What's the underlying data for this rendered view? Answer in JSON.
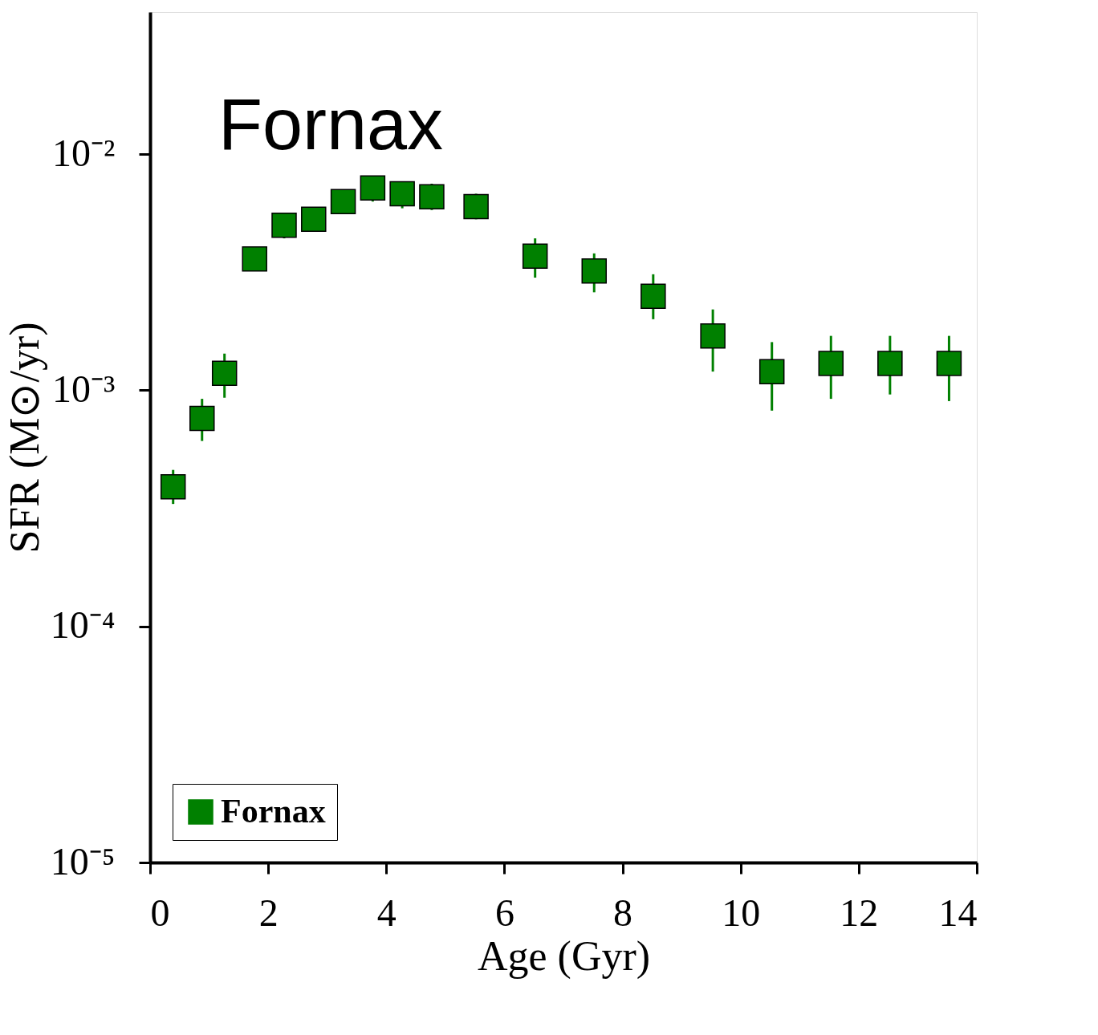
{
  "chart_data": {
    "type": "scatter",
    "annotations": [
      "Fornax"
    ],
    "xlabel": "Age (Gyr)",
    "ylabel": "SFR (M⊙/yr)",
    "x": [
      0.39,
      0.88,
      1.26,
      1.77,
      2.27,
      2.77,
      3.27,
      3.77,
      4.27,
      4.77,
      5.52,
      6.52,
      7.52,
      8.52,
      9.53,
      10.53,
      11.53,
      12.53,
      13.53
    ],
    "series": [
      {
        "name": "Fornax",
        "color": "#008000",
        "values": [
          0.00039,
          0.00076,
          0.00118,
          0.0036,
          0.005,
          0.0053,
          0.0063,
          0.0072,
          0.0068,
          0.0066,
          0.006,
          0.0037,
          0.0032,
          0.0025,
          0.0017,
          0.0012,
          0.0013,
          0.0013,
          0.0013
        ],
        "errors": [
          [
            0.00033,
            0.00046
          ],
          [
            0.00061,
            0.00092
          ],
          [
            0.00093,
            0.00143
          ],
          null,
          [
            0.0044,
            0.0055
          ],
          [
            0.0047,
            0.0058
          ],
          [
            0.0056,
            0.0069
          ],
          [
            0.0063,
            0.0079
          ],
          [
            0.0059,
            0.0074
          ],
          [
            0.0058,
            0.0075
          ],
          [
            0.0053,
            0.0068
          ],
          [
            0.003,
            0.0044
          ],
          [
            0.0026,
            0.0038
          ],
          [
            0.002,
            0.0031
          ],
          [
            0.0012,
            0.0022
          ],
          [
            0.00082,
            0.0016
          ],
          [
            0.00092,
            0.0017
          ],
          [
            0.00096,
            0.0017
          ],
          [
            0.0009,
            0.0017
          ]
        ]
      }
    ],
    "xlim": [
      0,
      14
    ],
    "xticks": [
      0,
      2,
      4,
      6,
      8,
      10,
      12,
      14
    ],
    "ylim": [
      1e-05,
      0.04
    ],
    "yticks": [
      {
        "value": 1e-05,
        "label": "10⁻⁵"
      },
      {
        "value": 0.0001,
        "label": "10⁻⁴"
      },
      {
        "value": 0.001,
        "label": "10⁻³"
      },
      {
        "value": 0.01,
        "label": "10⁻²"
      }
    ],
    "log": true,
    "marker": "square",
    "legend": "bottom left",
    "grid": false
  }
}
